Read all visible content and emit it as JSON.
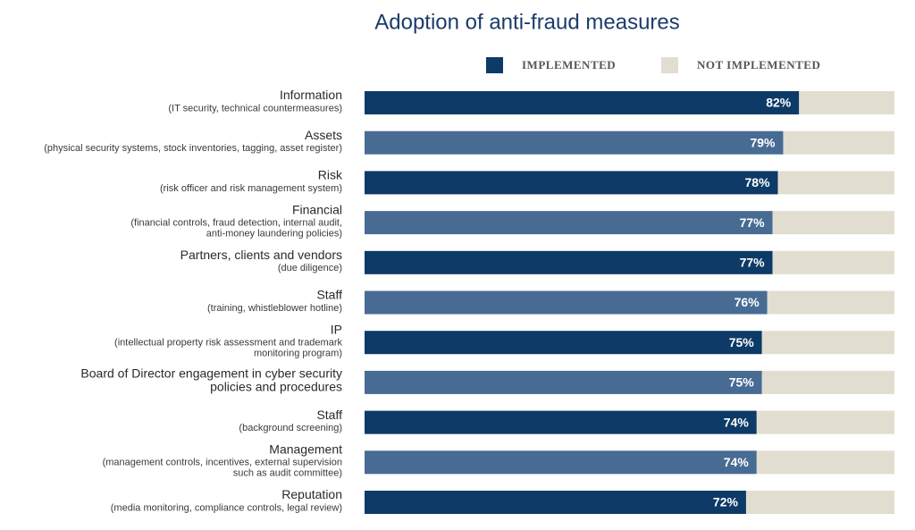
{
  "chart_data": {
    "type": "stacked-bar-horizontal",
    "title": "Adoption of anti-fraud measures",
    "categories": [
      [
        "Information"
      ],
      [
        "Assets"
      ],
      [
        "Risk"
      ],
      [
        "Financial"
      ],
      [
        "Partners, clients and vendors"
      ],
      [
        "Staff"
      ],
      [
        "IP"
      ],
      [
        "Board of Director engagement in cyber security",
        "policies and procedures"
      ],
      [
        "Staff"
      ],
      [
        "Management"
      ],
      [
        "Reputation"
      ]
    ],
    "notes": [
      [
        "(IT security, technical countermeasures)"
      ],
      [
        "(physical security systems, stock inventories, tagging, asset register)"
      ],
      [
        "(risk officer and risk management system)"
      ],
      [
        "(financial controls, fraud detection, internal audit,",
        "anti-money laundering policies)"
      ],
      [
        "(due diligence)"
      ],
      [
        "(training, whistleblower hotline)"
      ],
      [
        "(intellectual property risk assessment and trademark",
        "monitoring program)"
      ],
      [],
      [
        "(background screening)"
      ],
      [
        "(management controls, incentives, external supervision",
        "such as audit committee)"
      ],
      [
        "(media monitoring, compliance controls, legal review)"
      ]
    ],
    "series": [
      {
        "name": "IMPLEMENTED",
        "color": "#0d3a67",
        "colors": [
          "#0d3a67",
          "#486b94",
          "#0d3a67",
          "#486b94",
          "#0d3a67",
          "#486b94",
          "#0d3a67",
          "#486b94",
          "#0d3a67",
          "#486b94",
          "#0d3a67"
        ],
        "values": [
          82,
          79,
          78,
          77,
          77,
          76,
          75,
          75,
          74,
          74,
          72
        ],
        "value_labels": [
          "82%",
          "79%",
          "78%",
          "77%",
          "77%",
          "76%",
          "75%",
          "75%",
          "74%",
          "74%",
          "72%"
        ]
      },
      {
        "name": "NOT IMPLEMENTED",
        "color": "#e1ded1",
        "values": [
          18,
          21,
          22,
          23,
          23,
          24,
          25,
          25,
          26,
          26,
          28
        ]
      }
    ],
    "xlim": [
      0,
      100
    ]
  }
}
